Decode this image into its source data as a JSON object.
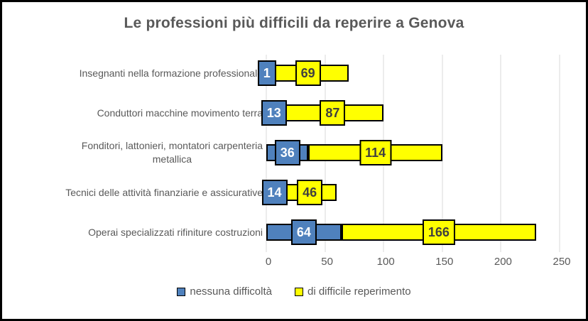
{
  "chart_data": {
    "type": "bar",
    "orientation": "horizontal",
    "stacked": true,
    "title": "Le professioni più difficili da reperire a Genova",
    "categories": [
      "Insegnanti nella formazione professionale",
      "Conduttori macchine movimento terra",
      "Fonditori, lattonieri, montatori carpenteria\nmetallica",
      "Tecnici delle attività finanziarie e assicurative",
      "Operai specializzati rifiniture costruzioni"
    ],
    "series": [
      {
        "name": "nessuna difficoltà",
        "color": "#4F81BD",
        "label_text_color": "#FFFFFF",
        "values": [
          1,
          13,
          36,
          14,
          64
        ]
      },
      {
        "name": "di difficile reperimento",
        "color": "#FFFF00",
        "label_text_color": "#3F3F3F",
        "values": [
          69,
          87,
          114,
          46,
          166
        ]
      }
    ],
    "xlim": [
      0,
      250
    ],
    "x_ticks": [
      0,
      50,
      100,
      150,
      200,
      250
    ],
    "grid": true,
    "gridline_color": "#D9D9D9",
    "axis_text_color": "#595959",
    "bar_border_color": "#000000",
    "legend_position": "bottom"
  }
}
